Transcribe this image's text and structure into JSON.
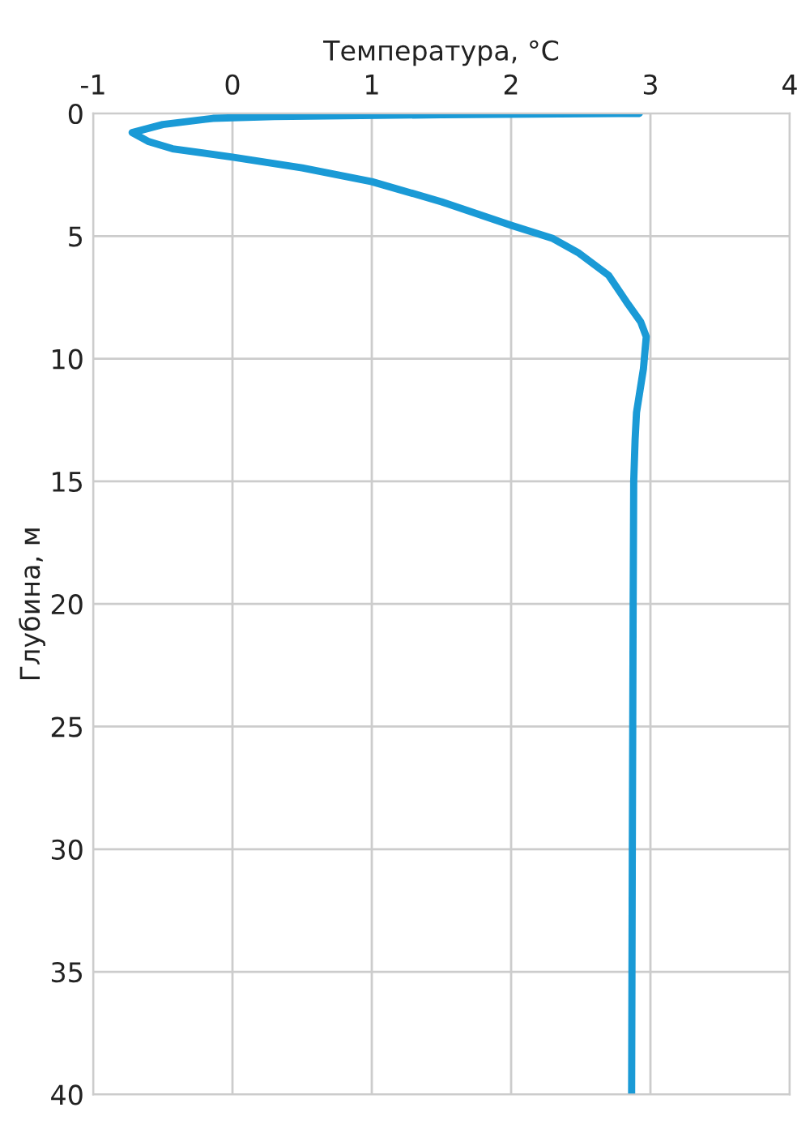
{
  "chart_data": {
    "type": "line",
    "xlabel": "Температура, °C",
    "ylabel": "Глубина, м",
    "x": [
      2.92,
      1.5,
      0.3,
      -0.14,
      -0.5,
      -0.72,
      -0.6,
      -0.43,
      0,
      0.5,
      1,
      1.5,
      2,
      2.3,
      2.48,
      2.7,
      2.84,
      2.93,
      2.97,
      2.95,
      2.9,
      2.89,
      2.88,
      2.876,
      2.87,
      2.865
    ],
    "series": [
      {
        "color": "#1a9ad6",
        "values": [
          0,
          0.05,
          0.13,
          0.2,
          0.45,
          0.78,
          1.15,
          1.44,
          1.78,
          2.22,
          2.78,
          3.6,
          4.56,
          5.1,
          5.67,
          6.6,
          7.78,
          8.5,
          9.1,
          10.4,
          12.2,
          13.3,
          15,
          20,
          30,
          40
        ]
      }
    ],
    "xlim": [
      -1,
      4
    ],
    "xticks": [
      -1,
      0,
      1,
      2,
      3,
      4
    ],
    "ylim": [
      40,
      0
    ],
    "yticks": [
      0,
      5,
      10,
      15,
      20,
      25,
      30,
      35,
      40
    ],
    "grid": true,
    "marker": "none",
    "line_style": "solid"
  }
}
